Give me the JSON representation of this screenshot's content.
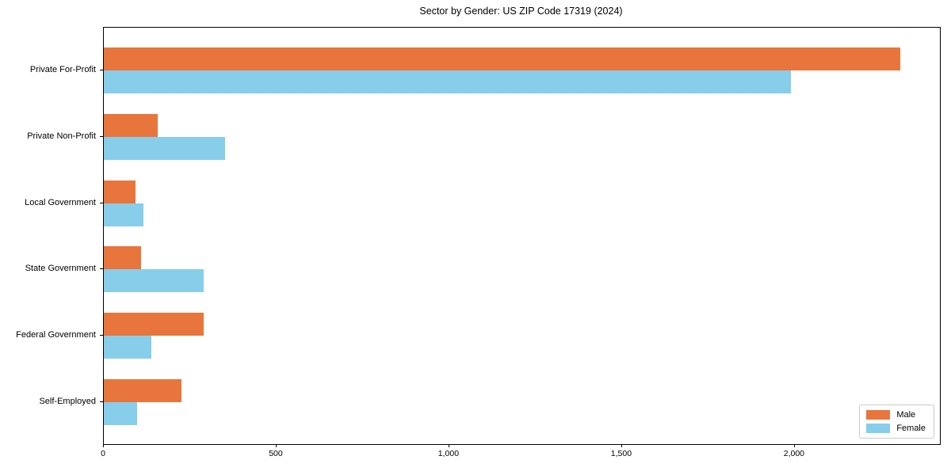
{
  "chart_data": {
    "type": "bar",
    "orientation": "horizontal",
    "title": "Sector by Gender: US ZIP Code 17319 (2024)",
    "categories": [
      "Private For-Profit",
      "Private Non-Profit",
      "Local Government",
      "State Government",
      "Federal Government",
      "Self-Employed"
    ],
    "series": [
      {
        "name": "Male",
        "color": "#E8763C",
        "values": [
          2305,
          156,
          91,
          108,
          289,
          225
        ]
      },
      {
        "name": "Female",
        "color": "#87CEEB",
        "values": [
          1988,
          351,
          114,
          289,
          138,
          97
        ]
      }
    ],
    "xlabel": "",
    "ylabel": "",
    "xlim": [
      0,
      2420
    ],
    "xticks": {
      "values": [
        0,
        500,
        1000,
        1500,
        2000
      ],
      "labels": [
        "0",
        "500",
        "1,000",
        "1,500",
        "2,000"
      ]
    },
    "legend": {
      "position": "lower-right",
      "entries": [
        "Male",
        "Female"
      ]
    },
    "grid": false,
    "background_color": "#FFFFFF",
    "axis_color": "#000000"
  }
}
